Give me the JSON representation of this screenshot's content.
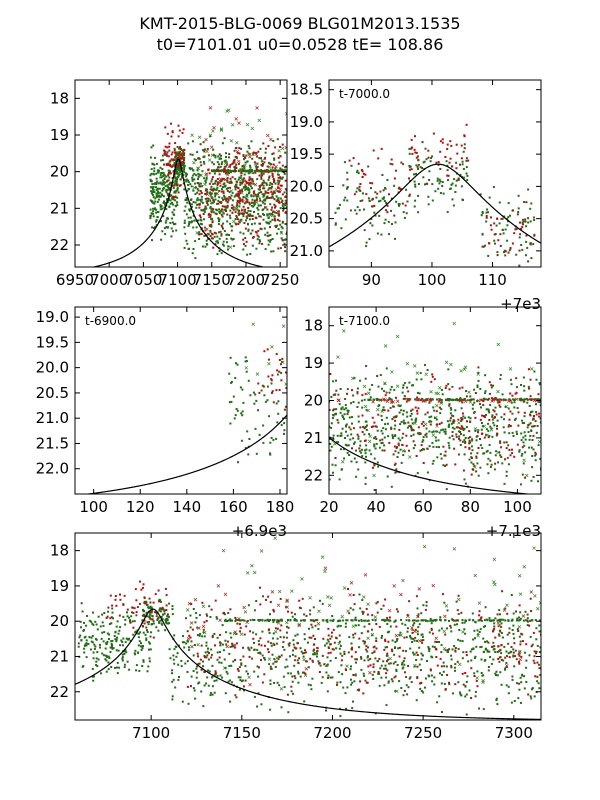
{
  "figure": {
    "title_line1": "KMT-2015-BLG-0069 BLG01M2013.1535",
    "title_line2": "t0=7101.01 u0=0.0528 tE= 108.86"
  },
  "colors": {
    "curve": "#000000",
    "green": "#1f6e14",
    "red": "#b01212",
    "green_mark": "#2f8a1e",
    "red_mark": "#c41b1b"
  },
  "chart_data": [
    {
      "id": "overview",
      "type": "scatter",
      "title": "",
      "xlabel": "",
      "ylabel": "",
      "xlim": [
        6950,
        7260
      ],
      "ylim": [
        22.6,
        17.5
      ],
      "xticks": [
        6950,
        7000,
        7050,
        7100,
        7150,
        7200,
        7250
      ],
      "xtick_labels": [
        "6950",
        "7000",
        "7050",
        "7100",
        "7150",
        "7200",
        "7250"
      ],
      "yticks": [
        18,
        19,
        20,
        21,
        22
      ],
      "ytick_labels": [
        "18",
        "19",
        "20",
        "21",
        "22"
      ],
      "annotation": "",
      "offset_label": "",
      "model": {
        "t0": 7101.01,
        "u0": 0.0528,
        "tE": 108.86,
        "baseline_mag": 22.85
      },
      "series": [
        {
          "name": "green dots",
          "style": "dot",
          "color": "#1f6e14",
          "clusters": [
            [
              7060,
              7100,
              19.2,
              21.9,
              260
            ],
            [
              7095,
              7110,
              19.3,
              20.5,
              120
            ],
            [
              7110,
              7260,
              19.0,
              22.5,
              700
            ],
            [
              7150,
              7260,
              19.95,
              20.0,
              150
            ]
          ]
        },
        {
          "name": "red dots",
          "style": "dot",
          "color": "#b01212",
          "clusters": [
            [
              7080,
              7110,
              18.6,
              20.8,
              90
            ],
            [
              7130,
              7260,
              19.0,
              22.3,
              300
            ]
          ]
        },
        {
          "name": "green crosses",
          "style": "cross",
          "color": "#2f8a1e",
          "clusters": [
            [
              7120,
              7260,
              17.6,
              22.5,
              60
            ]
          ]
        },
        {
          "name": "red crosses",
          "style": "cross",
          "color": "#c41b1b",
          "clusters": [
            [
              7140,
              7260,
              18.0,
              22.0,
              40
            ]
          ]
        }
      ]
    },
    {
      "id": "zoom-7000",
      "type": "scatter",
      "title": "",
      "xlabel": "",
      "ylabel": "",
      "xlim": [
        83,
        118
      ],
      "ylim": [
        21.25,
        18.35
      ],
      "xticks": [
        90,
        100,
        110
      ],
      "xtick_labels": [
        "90",
        "100",
        "110"
      ],
      "yticks": [
        18.5,
        19.0,
        19.5,
        20.0,
        20.5,
        21.0
      ],
      "ytick_labels": [
        "18.5",
        "19.0",
        "19.5",
        "20.0",
        "20.5",
        "21.0"
      ],
      "annotation": "t-7000.0",
      "offset_label": "+7e3",
      "model": {
        "t0": 7101.01,
        "u0": 0.0528,
        "tE": 108.86,
        "baseline_mag": 22.85,
        "x_offset": 7000
      },
      "series": [
        {
          "name": "green dots",
          "style": "dot",
          "color": "#1f6e14",
          "clusters": [
            [
              84,
              96,
              19.5,
              21.0,
              90
            ],
            [
              96,
              106,
              19.2,
              20.5,
              90
            ],
            [
              108,
              117,
              19.9,
              21.3,
              70
            ]
          ]
        },
        {
          "name": "red dots",
          "style": "dot",
          "color": "#b01212",
          "clusters": [
            [
              86,
              96,
              19.4,
              20.6,
              40
            ],
            [
              96,
              106,
              18.9,
              20.2,
              50
            ],
            [
              108,
              117,
              20.2,
              21.2,
              40
            ]
          ]
        }
      ]
    },
    {
      "id": "zoom-6900",
      "type": "scatter",
      "title": "",
      "xlabel": "",
      "ylabel": "",
      "xlim": [
        92,
        183
      ],
      "ylim": [
        22.5,
        18.8
      ],
      "xticks": [
        100,
        120,
        140,
        160,
        180
      ],
      "xtick_labels": [
        "100",
        "120",
        "140",
        "160",
        "180"
      ],
      "yticks": [
        19.0,
        19.5,
        20.0,
        20.5,
        21.0,
        21.5,
        22.0
      ],
      "ytick_labels": [
        "19.0",
        "19.5",
        "20.0",
        "20.5",
        "21.0",
        "21.5",
        "22.0"
      ],
      "annotation": "t-6900.0",
      "offset_label": "+6.9e3",
      "model": {
        "t0": 7101.01,
        "u0": 0.0528,
        "tE": 108.86,
        "baseline_mag": 22.85,
        "x_offset": 6900
      },
      "series": [
        {
          "name": "green dots",
          "style": "dot",
          "color": "#1f6e14",
          "clusters": [
            [
              158,
              183,
              19.5,
              22.0,
              70
            ]
          ]
        },
        {
          "name": "red dots",
          "style": "dot",
          "color": "#b01212",
          "clusters": [
            [
              170,
              183,
              19.3,
              21.0,
              25
            ]
          ]
        },
        {
          "name": "green crosses",
          "style": "cross",
          "color": "#2f8a1e",
          "clusters": [
            [
              165,
              183,
              18.9,
              20.5,
              8
            ]
          ]
        }
      ]
    },
    {
      "id": "zoom-7100",
      "type": "scatter",
      "title": "",
      "xlabel": "",
      "ylabel": "",
      "xlim": [
        20,
        110
      ],
      "ylim": [
        22.5,
        17.5
      ],
      "xticks": [
        20,
        40,
        60,
        80,
        100
      ],
      "xtick_labels": [
        "20",
        "40",
        "60",
        "80",
        "100"
      ],
      "yticks": [
        18,
        19,
        20,
        21,
        22
      ],
      "ytick_labels": [
        "18",
        "19",
        "20",
        "21",
        "22"
      ],
      "annotation": "t-7100.0",
      "offset_label": "+7.1e3",
      "model": {
        "t0": 7101.01,
        "u0": 0.0528,
        "tE": 108.86,
        "baseline_mag": 22.85,
        "x_offset": 7100
      },
      "series": [
        {
          "name": "green dots",
          "style": "dot",
          "color": "#1f6e14",
          "clusters": [
            [
              20,
              110,
              19.0,
              22.5,
              600
            ],
            [
              35,
              110,
              19.95,
              20.0,
              120
            ]
          ]
        },
        {
          "name": "red dots",
          "style": "dot",
          "color": "#b01212",
          "clusters": [
            [
              20,
              110,
              19.0,
              22.2,
              220
            ]
          ]
        },
        {
          "name": "green crosses",
          "style": "cross",
          "color": "#2f8a1e",
          "clusters": [
            [
              20,
              110,
              17.7,
              22.4,
              60
            ]
          ]
        },
        {
          "name": "red crosses",
          "style": "cross",
          "color": "#c41b1b",
          "clusters": [
            [
              20,
              110,
              19.95,
              20.05,
              40
            ]
          ]
        }
      ]
    },
    {
      "id": "full",
      "type": "scatter",
      "title": "",
      "xlabel": "",
      "ylabel": "",
      "xlim": [
        7058,
        7315
      ],
      "ylim": [
        22.8,
        17.5
      ],
      "xticks": [
        7100,
        7150,
        7200,
        7250,
        7300
      ],
      "xtick_labels": [
        "7100",
        "7150",
        "7200",
        "7250",
        "7300"
      ],
      "yticks": [
        18,
        19,
        20,
        21,
        22
      ],
      "ytick_labels": [
        "18",
        "19",
        "20",
        "21",
        "22"
      ],
      "annotation": "",
      "offset_label": "",
      "model": {
        "t0": 7101.01,
        "u0": 0.0528,
        "tE": 108.86,
        "baseline_mag": 22.85
      },
      "series": [
        {
          "name": "green dots",
          "style": "dot",
          "color": "#1f6e14",
          "clusters": [
            [
              7060,
              7100,
              19.3,
              21.8,
              220
            ],
            [
              7095,
              7110,
              19.3,
              20.3,
              80
            ],
            [
              7110,
              7315,
              19.2,
              22.7,
              800
            ],
            [
              7140,
              7315,
              19.95,
              20.0,
              180
            ]
          ]
        },
        {
          "name": "red dots",
          "style": "dot",
          "color": "#b01212",
          "clusters": [
            [
              7075,
              7110,
              18.8,
              20.5,
              60
            ],
            [
              7120,
              7315,
              19.0,
              22.3,
              330
            ]
          ]
        },
        {
          "name": "green crosses",
          "style": "cross",
          "color": "#2f8a1e",
          "clusters": [
            [
              7120,
              7315,
              17.6,
              22.5,
              80
            ]
          ]
        },
        {
          "name": "red crosses",
          "style": "cross",
          "color": "#c41b1b",
          "clusters": [
            [
              7120,
              7315,
              17.8,
              22.0,
              50
            ]
          ]
        }
      ]
    }
  ]
}
